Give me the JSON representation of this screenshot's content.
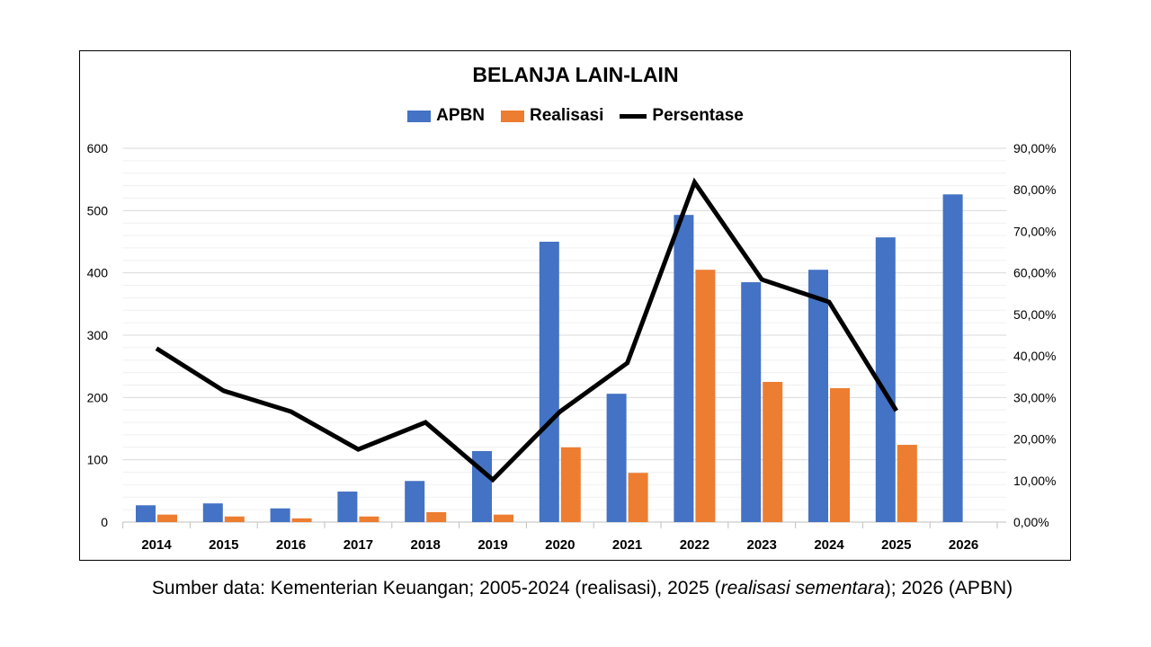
{
  "chart_data": {
    "type": "bar",
    "title": "BELANJA LAIN-LAIN",
    "categories": [
      "2014",
      "2015",
      "2016",
      "2017",
      "2018",
      "2019",
      "2020",
      "2021",
      "2022",
      "2023",
      "2024",
      "2025",
      "2026"
    ],
    "series": [
      {
        "name": "APBN",
        "type": "bar",
        "axis": "left",
        "color": "#4472C4",
        "values": [
          27,
          30,
          22,
          49,
          66,
          114,
          450,
          206,
          493,
          385,
          405,
          457,
          526
        ]
      },
      {
        "name": "Realisasi",
        "type": "bar",
        "axis": "left",
        "color": "#ED7D31",
        "values": [
          12,
          9,
          6,
          9,
          16,
          12,
          120,
          79,
          405,
          225,
          215,
          124,
          null
        ]
      },
      {
        "name": "Persentase",
        "type": "line",
        "axis": "right",
        "color": "#000000",
        "values": [
          41.8,
          31.6,
          26.6,
          17.5,
          24.0,
          10.2,
          26.6,
          38.3,
          81.8,
          58.4,
          53.0,
          26.8,
          null
        ]
      }
    ],
    "yleft": {
      "range": [
        0,
        600
      ],
      "ticks": [
        "0",
        "100",
        "200",
        "300",
        "400",
        "500",
        "600"
      ]
    },
    "yright": {
      "range": [
        0,
        90
      ],
      "ticks": [
        "0,00%",
        "10,00%",
        "20,00%",
        "30,00%",
        "40,00%",
        "50,00%",
        "60,00%",
        "70,00%",
        "80,00%",
        "90,00%"
      ]
    },
    "grid": true,
    "legend": "top"
  },
  "source": {
    "prefix": "Sumber data: Kementerian Keuangan; 2005-2024 (realisasi), 2025 (",
    "italic": "realisasi sementara",
    "suffix": "); 2026 (APBN)"
  }
}
